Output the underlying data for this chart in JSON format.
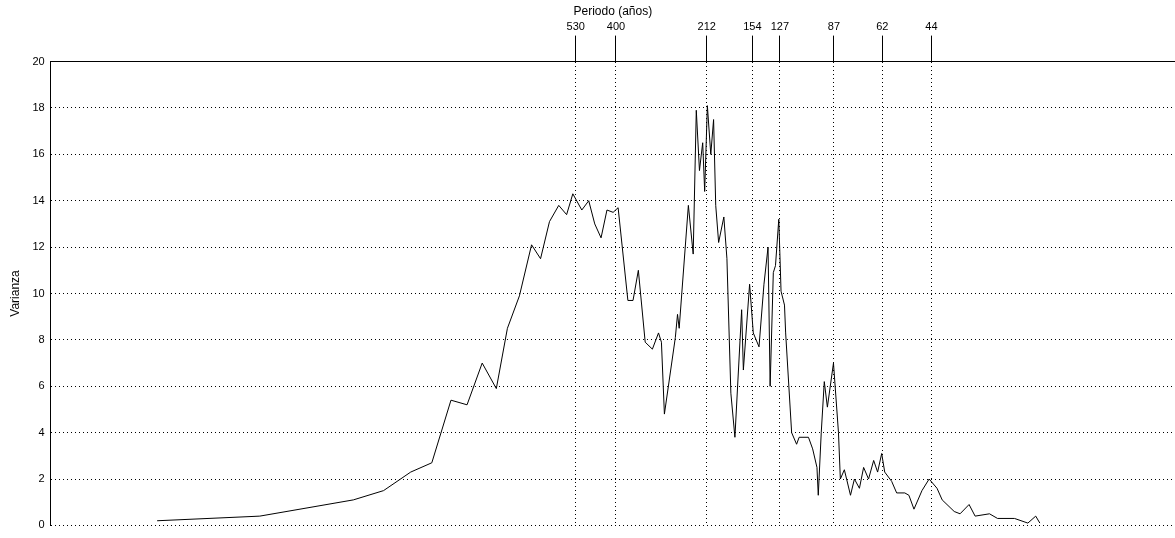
{
  "chart_data": {
    "type": "line",
    "xlabel": "Periodo (años)",
    "ylabel": "Varianza",
    "log": "x",
    "xlim": [
      20900,
      8
    ],
    "xticks": [
      530,
      400,
      212,
      154,
      127,
      87,
      62,
      44
    ],
    "ylim": [
      0,
      20
    ],
    "yticks": [
      0,
      2,
      4,
      6,
      8,
      10,
      12,
      14,
      16,
      18,
      20
    ],
    "grid": true,
    "legend": false,
    "marker": "none",
    "line_style": "solid",
    "series": [
      {
        "color": "#000000",
        "x": [
          9920,
          4836,
          2513,
          2034,
          1682,
          1451,
          1269,
          1134,
          1020,
          924,
          855,
          786,
          722,
          678,
          637,
          597,
          565,
          541,
          508,
          484,
          464,
          444,
          426,
          408,
          394,
          368,
          355,
          342,
          326,
          310,
          297,
          291,
          285,
          264,
          260,
          257,
          241,
          233,
          228,
          223,
          218,
          215,
          211,
          206,
          202,
          199,
          195,
          188,
          184,
          179,
          174,
          166,
          164,
          157,
          153,
          147,
          142,
          138,
          136,
          133,
          131,
          128,
          126,
          123,
          122,
          117,
          113,
          111,
          104,
          101,
          98,
          97.1,
          95.1,
          93.1,
          91.1,
          87.3,
          84.3,
          83.2,
          80.9,
          77.5,
          75.4,
          72.8,
          70.7,
          68.3,
          65.9,
          64.1,
          62.3,
          61.0,
          58.1,
          56.1,
          53.0,
          51.5,
          49.7,
          47.0,
          44.7,
          42.3,
          40.8,
          37.5,
          36.0,
          33.8,
          32.4,
          29.3,
          27.7,
          24.6,
          22.4,
          21.2,
          20.6
        ],
        "values": [
          0.2,
          0.4,
          1.1,
          1.5,
          2.3,
          2.7,
          5.4,
          5.2,
          7.0,
          5.9,
          8.5,
          9.9,
          12.1,
          11.5,
          13.1,
          13.8,
          13.4,
          14.3,
          13.6,
          14.0,
          13.0,
          12.4,
          13.6,
          13.5,
          13.7,
          9.7,
          9.7,
          11.0,
          7.9,
          7.6,
          8.3,
          7.9,
          4.8,
          8.1,
          9.1,
          8.5,
          13.8,
          11.7,
          17.9,
          15.3,
          16.5,
          14.4,
          18.1,
          16.0,
          17.5,
          13.8,
          12.2,
          13.3,
          11.5,
          5.7,
          3.8,
          9.3,
          6.7,
          10.4,
          8.3,
          7.7,
          10.4,
          12.0,
          6.0,
          10.9,
          11.2,
          13.2,
          10.1,
          9.5,
          8.3,
          4.0,
          3.5,
          3.8,
          3.8,
          3.3,
          2.5,
          1.3,
          4.0,
          6.2,
          5.1,
          7.0,
          4.0,
          2.0,
          2.4,
          1.3,
          2.0,
          1.6,
          2.5,
          2.0,
          2.8,
          2.3,
          3.1,
          2.3,
          1.9,
          1.4,
          1.4,
          1.3,
          0.7,
          1.5,
          2.0,
          1.6,
          1.1,
          0.6,
          0.5,
          0.9,
          0.4,
          0.5,
          0.3,
          0.3,
          0.1,
          0.4,
          0.1
        ]
      }
    ]
  }
}
